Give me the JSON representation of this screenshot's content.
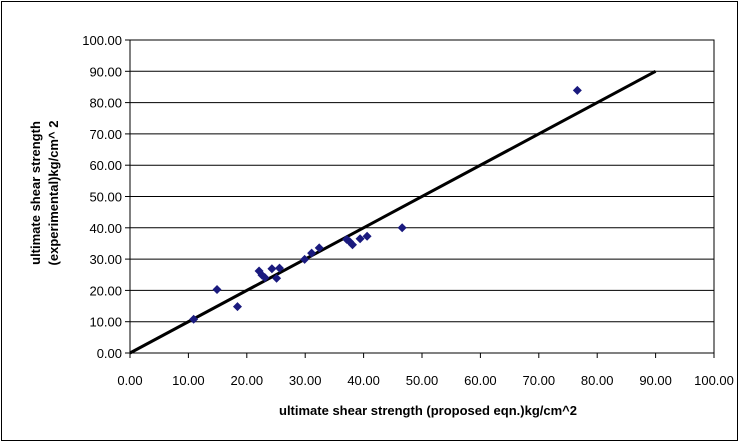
{
  "chart_data": {
    "type": "scatter",
    "title": "",
    "xlabel": "ultimate shear strength (proposed eqn.)kg/cm^2",
    "ylabel_line1": "ultimate shear strength",
    "ylabel_line2": "(experimental)kg/cm^ 2",
    "xlim": [
      0,
      100
    ],
    "ylim": [
      0,
      100
    ],
    "x_ticks": [
      "0.00",
      "10.00",
      "20.00",
      "30.00",
      "40.00",
      "50.00",
      "60.00",
      "70.00",
      "80.00",
      "90.00",
      "100.00"
    ],
    "y_ticks": [
      "0.00",
      "10.00",
      "20.00",
      "30.00",
      "40.00",
      "50.00",
      "60.00",
      "70.00",
      "80.00",
      "90.00",
      "100.00"
    ],
    "grid": "horizontal",
    "legend": "none",
    "marker": "diamond",
    "point_color": "#1a1a7e",
    "points": [
      {
        "x": 10.9,
        "y": 10.8
      },
      {
        "x": 14.9,
        "y": 20.3
      },
      {
        "x": 18.4,
        "y": 14.8
      },
      {
        "x": 22.1,
        "y": 26.2
      },
      {
        "x": 22.6,
        "y": 24.9
      },
      {
        "x": 23.1,
        "y": 24.1
      },
      {
        "x": 24.3,
        "y": 26.9
      },
      {
        "x": 25.1,
        "y": 23.9
      },
      {
        "x": 25.6,
        "y": 27.1
      },
      {
        "x": 29.9,
        "y": 29.9
      },
      {
        "x": 31.1,
        "y": 31.9
      },
      {
        "x": 32.4,
        "y": 33.6
      },
      {
        "x": 37.1,
        "y": 36.3
      },
      {
        "x": 37.6,
        "y": 35.6
      },
      {
        "x": 38.1,
        "y": 34.6
      },
      {
        "x": 39.4,
        "y": 36.5
      },
      {
        "x": 40.6,
        "y": 37.3
      },
      {
        "x": 46.6,
        "y": 40.0
      },
      {
        "x": 76.6,
        "y": 83.9
      }
    ],
    "reference_line": {
      "x": [
        0,
        90
      ],
      "y": [
        0,
        90
      ],
      "color": "#000000"
    }
  }
}
